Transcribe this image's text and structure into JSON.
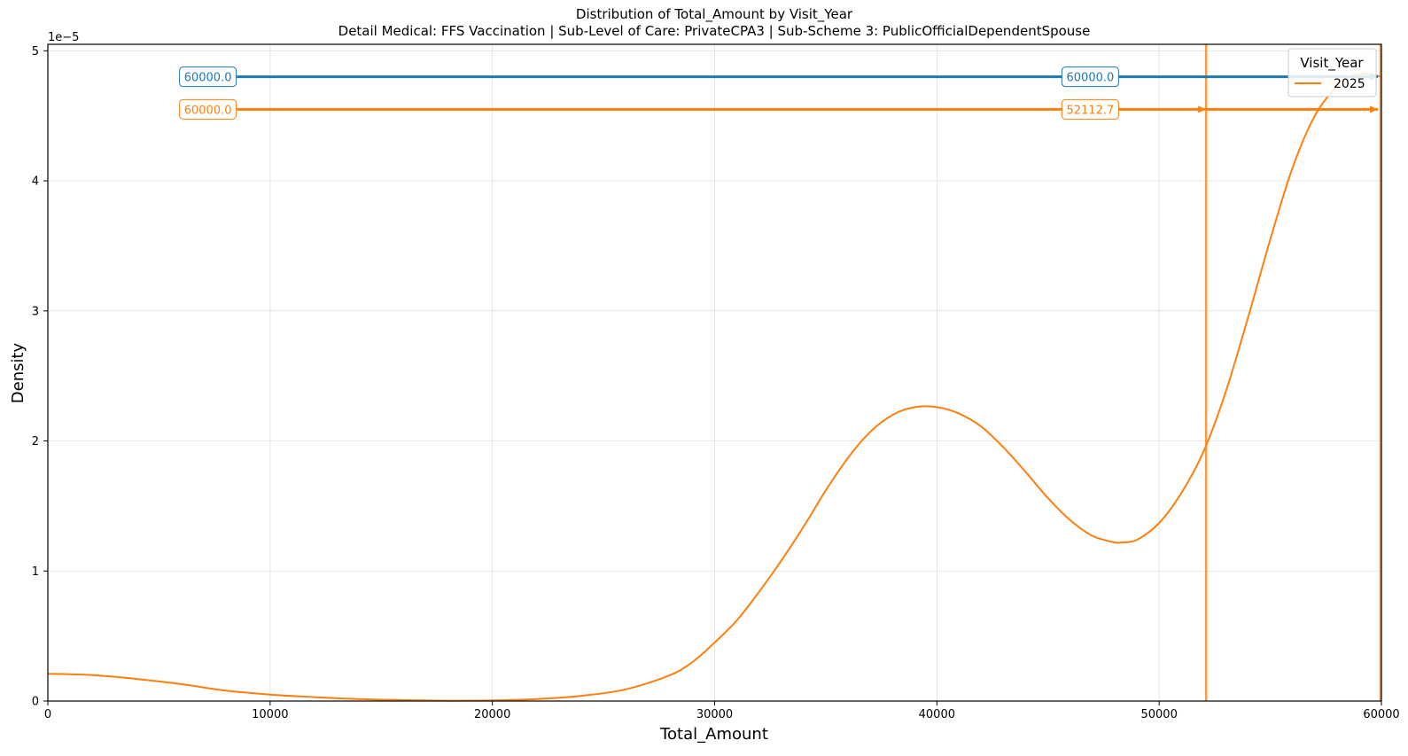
{
  "chart_data": {
    "type": "line",
    "title": "Distribution of Total_Amount by Visit_Year",
    "subtitle": "Detail Medical: FFS Vaccination | Sub-Level of Care: PrivateCPA3 | Sub-Scheme 3: PublicOfficialDependentSpouse",
    "xlabel": "Total_Amount",
    "ylabel": "Density",
    "y_scale_label": "1e−5",
    "xlim": [
      0,
      60000
    ],
    "ylim": [
      0,
      5.05
    ],
    "x_ticks": [
      0,
      10000,
      20000,
      30000,
      40000,
      50000,
      60000
    ],
    "x_tick_labels": [
      "0",
      "10000",
      "20000",
      "30000",
      "40000",
      "50000",
      "60000"
    ],
    "y_ticks": [
      0,
      1,
      2,
      3,
      4,
      5
    ],
    "y_tick_labels": [
      "0",
      "1",
      "2",
      "3",
      "4",
      "5"
    ],
    "grid": true,
    "legend": {
      "title": "Visit_Year",
      "position": "top-right",
      "entries": [
        {
          "label": "2025",
          "color": "#ff7f0e"
        }
      ]
    },
    "series": [
      {
        "name": "2025",
        "color": "#ff7f0e",
        "x": [
          0,
          2000,
          4000,
          6000,
          8000,
          10000,
          12000,
          14000,
          16000,
          18000,
          20000,
          22000,
          24000,
          26000,
          28000,
          29000,
          30000,
          31000,
          32000,
          33000,
          34000,
          35000,
          36000,
          37000,
          38000,
          39000,
          40000,
          41000,
          42000,
          43000,
          44000,
          45000,
          46000,
          47000,
          48000,
          48300,
          49000,
          50000,
          51000,
          52000,
          53000,
          54000,
          55000,
          56000,
          57000,
          58000,
          58500,
          59000,
          59500,
          60000
        ],
        "y": [
          0.21,
          0.2,
          0.17,
          0.13,
          0.08,
          0.05,
          0.03,
          0.015,
          0.007,
          0.003,
          0.005,
          0.015,
          0.04,
          0.09,
          0.2,
          0.3,
          0.45,
          0.62,
          0.84,
          1.08,
          1.34,
          1.62,
          1.87,
          2.07,
          2.2,
          2.26,
          2.26,
          2.21,
          2.11,
          1.95,
          1.76,
          1.56,
          1.39,
          1.27,
          1.22,
          1.22,
          1.24,
          1.37,
          1.6,
          1.92,
          2.38,
          2.95,
          3.55,
          4.1,
          4.5,
          4.73,
          4.8,
          4.82,
          4.82,
          4.8
        ]
      }
    ],
    "vlines": [
      {
        "x": 52112.7,
        "color": "#ff7f0e"
      },
      {
        "x": 60000,
        "color": "#ff7f0e"
      }
    ],
    "range_arrows": [
      {
        "y": 4.8,
        "x_start": 8500,
        "x_end": 60000,
        "color": "#1f77b4",
        "labels": [
          {
            "text": "60000.0",
            "x": 7200
          },
          {
            "text": "60000.0",
            "x": 46900
          }
        ],
        "arrowheads": [
          60000
        ]
      },
      {
        "y": 4.55,
        "x_start": 8500,
        "x_end": 60000,
        "color": "#ff7f0e",
        "labels": [
          {
            "text": "60000.0",
            "x": 7200
          },
          {
            "text": "52112.7",
            "x": 46900
          }
        ],
        "arrowheads": [
          52112.7,
          60000
        ]
      }
    ]
  }
}
